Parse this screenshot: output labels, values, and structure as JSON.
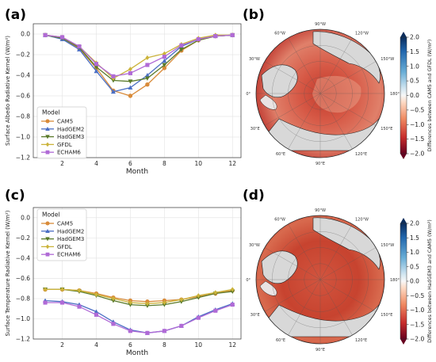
{
  "colors": {
    "CAM5": "#d98b3a",
    "HadGEM2": "#4b6fc4",
    "HadGEM3": "#5a7a2a",
    "GFDL": "#cbb33a",
    "ECHAM6": "#b06ad6"
  },
  "chart_data": [
    {
      "panel": "(a)",
      "type": "line",
      "xlabel": "Month",
      "ylabel": "Surface Albedo Radiative Kernel (W/m²)",
      "xlim": [
        0.3,
        12.5
      ],
      "ylim": [
        -1.2,
        0.1
      ],
      "xticks": [
        2,
        4,
        6,
        8,
        10,
        12
      ],
      "yticks": [
        0.0,
        -0.2,
        -0.4,
        -0.6,
        -0.8,
        -1.0,
        -1.2
      ],
      "yticklabels": [
        "0.0",
        "−0.2",
        "−0.4",
        "−0.6",
        "−0.8",
        "−1.0",
        "−1.2"
      ],
      "legend_title": "Model",
      "legend_position": "lower-left",
      "x": [
        1,
        2,
        3,
        4,
        5,
        6,
        7,
        8,
        9,
        10,
        11,
        12
      ],
      "series": [
        {
          "name": "CAM5",
          "marker": "circle",
          "values": [
            -0.01,
            -0.04,
            -0.14,
            -0.33,
            -0.55,
            -0.6,
            -0.49,
            -0.33,
            -0.16,
            -0.06,
            -0.02,
            -0.01
          ]
        },
        {
          "name": "HadGEM2",
          "marker": "triangle-up",
          "values": [
            -0.01,
            -0.05,
            -0.15,
            -0.36,
            -0.56,
            -0.52,
            -0.4,
            -0.26,
            -0.12,
            -0.05,
            -0.02,
            -0.01
          ]
        },
        {
          "name": "HadGEM3",
          "marker": "triangle-down",
          "values": [
            -0.01,
            -0.04,
            -0.13,
            -0.32,
            -0.45,
            -0.46,
            -0.43,
            -0.3,
            -0.15,
            -0.06,
            -0.02,
            -0.01
          ]
        },
        {
          "name": "GFDL",
          "marker": "diamond",
          "values": [
            -0.01,
            -0.03,
            -0.12,
            -0.28,
            -0.43,
            -0.34,
            -0.23,
            -0.19,
            -0.1,
            -0.04,
            -0.01,
            -0.01
          ]
        },
        {
          "name": "ECHAM6",
          "marker": "square",
          "values": [
            -0.01,
            -0.03,
            -0.12,
            -0.29,
            -0.41,
            -0.38,
            -0.3,
            -0.22,
            -0.11,
            -0.05,
            -0.02,
            -0.01
          ]
        }
      ]
    },
    {
      "panel": "(c)",
      "type": "line",
      "xlabel": "Month",
      "ylabel": "Surface Temperature Radiative Kernel (W/m²)",
      "xlim": [
        0.3,
        12.5
      ],
      "ylim": [
        -1.2,
        0.1
      ],
      "xticks": [
        2,
        4,
        6,
        8,
        10,
        12
      ],
      "yticks": [
        0.0,
        -0.2,
        -0.4,
        -0.6,
        -0.8,
        -1.0,
        -1.2
      ],
      "yticklabels": [
        "0.0",
        "−0.2",
        "−0.4",
        "−0.6",
        "−0.8",
        "−1.0",
        "−1.2"
      ],
      "legend_title": "Model",
      "legend_position": "upper-left",
      "x": [
        1,
        2,
        3,
        4,
        5,
        6,
        7,
        8,
        9,
        10,
        11,
        12
      ],
      "series": [
        {
          "name": "CAM5",
          "marker": "circle",
          "values": [
            -0.71,
            -0.71,
            -0.72,
            -0.75,
            -0.79,
            -0.82,
            -0.83,
            -0.82,
            -0.81,
            -0.78,
            -0.75,
            -0.72
          ]
        },
        {
          "name": "HadGEM2",
          "marker": "triangle-up",
          "values": [
            -0.82,
            -0.83,
            -0.86,
            -0.93,
            -1.03,
            -1.11,
            -1.14,
            -1.12,
            -1.07,
            -0.98,
            -0.91,
            -0.85
          ]
        },
        {
          "name": "HadGEM3",
          "marker": "triangle-down",
          "values": [
            -0.71,
            -0.71,
            -0.73,
            -0.77,
            -0.82,
            -0.86,
            -0.87,
            -0.86,
            -0.83,
            -0.79,
            -0.75,
            -0.73
          ]
        },
        {
          "name": "GFDL",
          "marker": "diamond",
          "values": [
            -0.71,
            -0.71,
            -0.72,
            -0.76,
            -0.8,
            -0.84,
            -0.85,
            -0.84,
            -0.81,
            -0.77,
            -0.74,
            -0.71
          ]
        },
        {
          "name": "ECHAM6",
          "marker": "square",
          "values": [
            -0.84,
            -0.84,
            -0.88,
            -0.96,
            -1.05,
            -1.12,
            -1.14,
            -1.12,
            -1.07,
            -0.99,
            -0.92,
            -0.86
          ]
        }
      ]
    },
    {
      "panel": "(b)",
      "type": "heatmap",
      "projection": "north-polar-stereographic",
      "colormap": "RdBu",
      "colorbar_label": "Differences between CAM5 and GFDL (W/m²)",
      "colorbar_range": [
        -2.0,
        2.0
      ],
      "colorbar_ticks": [
        2.0,
        1.5,
        1.0,
        0.5,
        0.0,
        -0.5,
        -1.0,
        -1.5,
        -2.0
      ],
      "colorbar_ticklabels": [
        "2.0",
        "1.5",
        "1.0",
        "0.5",
        "0.0",
        "−0.5",
        "−1.0",
        "−1.5",
        "−2.0"
      ],
      "lon_labels": [
        "90°W",
        "120°W",
        "150°W",
        "180°",
        "150°E",
        "120°E",
        "90°E",
        "60°E",
        "30°E",
        "0°",
        "30°W",
        "60°W"
      ]
    },
    {
      "panel": "(d)",
      "type": "heatmap",
      "projection": "north-polar-stereographic",
      "colormap": "RdBu",
      "colorbar_label": "Differences between HadGEM3 and CAM5 (W/m²)",
      "colorbar_range": [
        -2.0,
        2.0
      ],
      "colorbar_ticks": [
        2.0,
        1.5,
        1.0,
        0.5,
        0.0,
        -0.5,
        -1.0,
        -1.5,
        -2.0
      ],
      "colorbar_ticklabels": [
        "2.0",
        "1.5",
        "1.0",
        "0.5",
        "0.0",
        "−0.5",
        "−1.0",
        "−1.5",
        "−2.0"
      ],
      "lon_labels": [
        "90°W",
        "120°W",
        "150°W",
        "180°",
        "150°E",
        "120°E",
        "90°E",
        "60°E",
        "30°E",
        "0°",
        "30°W",
        "60°W"
      ]
    }
  ]
}
